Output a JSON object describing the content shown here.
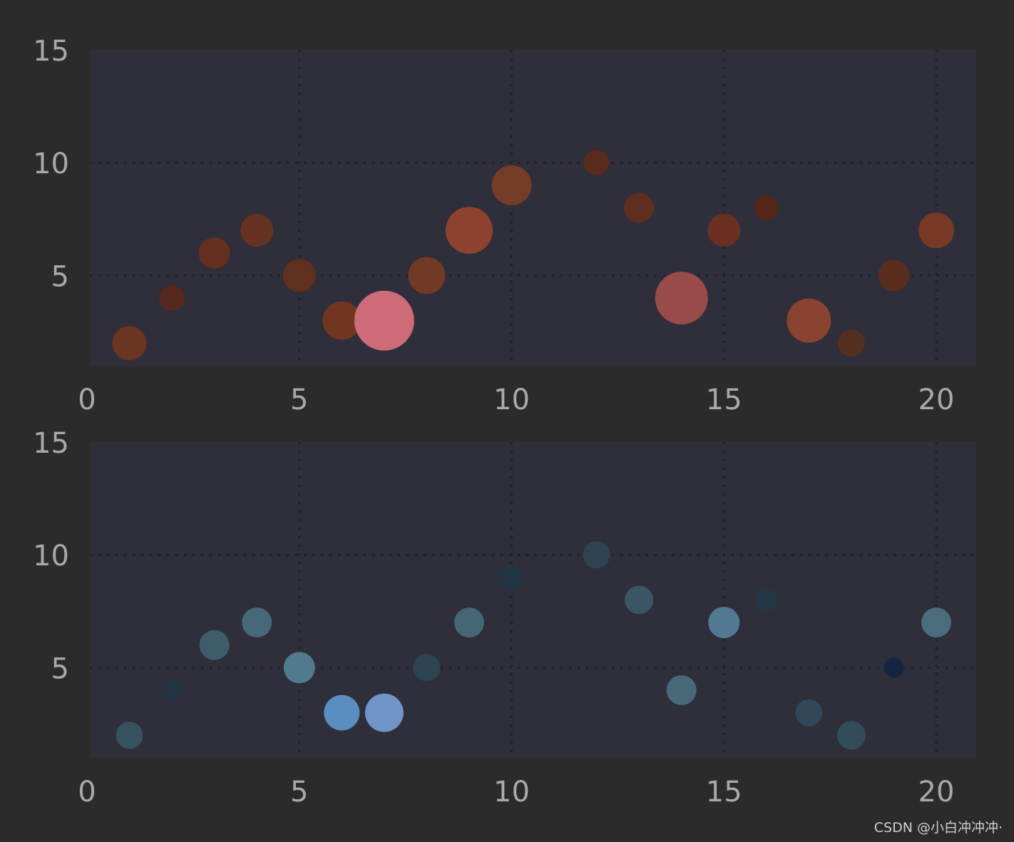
{
  "chart_data": [
    {
      "type": "scatter",
      "title": "",
      "xlabel": "",
      "ylabel": "",
      "xlim": [
        0,
        21
      ],
      "ylim": [
        1,
        15
      ],
      "xticks": [
        "0",
        "5",
        "10",
        "15",
        "20"
      ],
      "yticks": [
        "5",
        "10",
        "15"
      ],
      "grid": true,
      "colormap": "reds",
      "x": [
        1,
        2,
        3,
        4,
        5,
        6,
        7,
        8,
        9,
        10,
        12,
        13,
        14,
        15,
        16,
        17,
        18,
        19,
        20
      ],
      "y": [
        2,
        4,
        6,
        7,
        5,
        3,
        3,
        5,
        7,
        9,
        10,
        8,
        4,
        7,
        8,
        3,
        2,
        5,
        7
      ],
      "sizes": [
        24,
        18,
        22,
        23,
        23,
        27,
        42,
        26,
        33,
        28,
        18,
        21,
        37,
        23,
        17,
        31,
        19,
        22,
        25
      ],
      "colors": [
        "#6b3524",
        "#57281d",
        "#63301f",
        "#663221",
        "#60301f",
        "#703622",
        "#cd6b78",
        "#703a26",
        "#8d422e",
        "#753d27",
        "#582b1d",
        "#5e2e1f",
        "#984b48",
        "#6b3022",
        "#532618",
        "#8a4330",
        "#55301f",
        "#592e1f",
        "#773825"
      ]
    },
    {
      "type": "scatter",
      "title": "",
      "xlabel": "",
      "ylabel": "",
      "xlim": [
        0,
        21
      ],
      "ylim": [
        1,
        15
      ],
      "xticks": [
        "0",
        "5",
        "10",
        "15",
        "20"
      ],
      "yticks": [
        "5",
        "10",
        "15"
      ],
      "grid": true,
      "colormap": "blues",
      "x": [
        1,
        2,
        3,
        4,
        5,
        6,
        7,
        8,
        9,
        10,
        12,
        13,
        14,
        15,
        16,
        17,
        18,
        19,
        20
      ],
      "y": [
        2,
        4,
        6,
        7,
        5,
        3,
        3,
        5,
        7,
        9,
        10,
        8,
        4,
        7,
        8,
        3,
        2,
        5,
        7
      ],
      "sizes": [
        19,
        14,
        21,
        21,
        22,
        25,
        27,
        19,
        21,
        17,
        19,
        20,
        21,
        22,
        16,
        19,
        20,
        14,
        21
      ],
      "colors": [
        "#36525f",
        "#223544",
        "#3e5d6b",
        "#466878",
        "#527a8e",
        "#5a8ec0",
        "#7093c8",
        "#2d4452",
        "#456676",
        "#223544",
        "#2e4453",
        "#3a5664",
        "#48697a",
        "#537a92",
        "#243746",
        "#30485a",
        "#324c5a",
        "#14263f",
        "#4a6c7c"
      ]
    }
  ],
  "watermark": "CSDN @小白冲冲冲·"
}
